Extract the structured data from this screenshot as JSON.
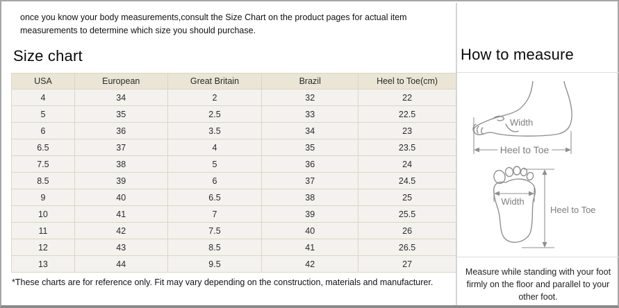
{
  "intro": "once you know your body measurements,consult the Size Chart on the product pages for actual item measurements to determine which size you should purchase.",
  "size_chart": {
    "title": "Size chart",
    "columns": [
      "USA",
      "European",
      "Great Britain",
      "Brazil",
      "Heel to Toe(cm)"
    ],
    "rows": [
      [
        "4",
        "34",
        "2",
        "32",
        "22"
      ],
      [
        "5",
        "35",
        "2.5",
        "33",
        "22.5"
      ],
      [
        "6",
        "36",
        "3.5",
        "34",
        "23"
      ],
      [
        "6.5",
        "37",
        "4",
        "35",
        "23.5"
      ],
      [
        "7.5",
        "38",
        "5",
        "36",
        "24"
      ],
      [
        "8.5",
        "39",
        "6",
        "37",
        "24.5"
      ],
      [
        "9",
        "40",
        "6.5",
        "38",
        "25"
      ],
      [
        "10",
        "41",
        "7",
        "39",
        "25.5"
      ],
      [
        "11",
        "42",
        "7.5",
        "40",
        "26"
      ],
      [
        "12",
        "43",
        "8.5",
        "41",
        "26.5"
      ],
      [
        "13",
        "44",
        "9.5",
        "42",
        "27"
      ]
    ],
    "footnote": "*These charts are for reference only. Fit may vary depending on the construction, materials and manufacturer."
  },
  "how_to_measure": {
    "title": "How to measure",
    "side_view": {
      "width_label": "Width",
      "length_label": "Heel to Toe"
    },
    "footprint_view": {
      "width_label": "Width",
      "length_label": "Heel to Toe"
    },
    "note": "Measure while standing with your foot firmly on the floor and parallel to your other foot."
  },
  "colors": {
    "table_header_bg": "#ebe5d6",
    "table_row_bg": "#f3f2ee",
    "table_border": "#ddd5c2",
    "frame_border": "#a6a6a6",
    "diagram_stroke": "#8f8f8f",
    "diagram_label": "#7d7d7d"
  }
}
